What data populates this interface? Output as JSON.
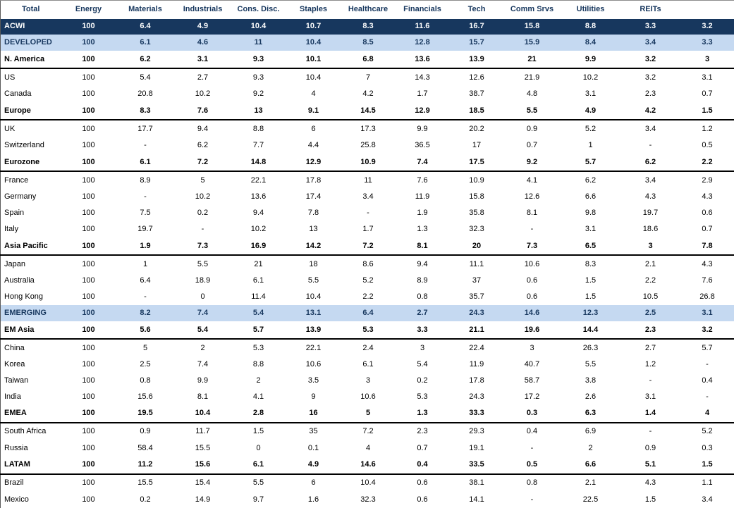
{
  "colors": {
    "header_text": "#17375E",
    "dark_band_bg": "#17375E",
    "dark_band_text": "#ffffff",
    "light_band_bg": "#C5D9F1",
    "light_band_text": "#17375E",
    "region_rule": "#000000"
  },
  "chart_data": {
    "type": "table",
    "column_headers": [
      "Total",
      "Energy",
      "Materials",
      "Industrials",
      "Cons. Disc.",
      "Staples",
      "Healthcare",
      "Financials",
      "Tech",
      "Comm Srvs",
      "Utilities",
      "REITs"
    ],
    "rows": [
      {
        "label": "ACWI",
        "emphasis": "dark",
        "values": [
          "100",
          "6.4",
          "4.9",
          "10.4",
          "10.7",
          "8.3",
          "11.6",
          "16.7",
          "15.8",
          "8.8",
          "3.3",
          "3.2"
        ]
      },
      {
        "label": "DEVELOPED",
        "emphasis": "light",
        "values": [
          "100",
          "6.1",
          "4.6",
          "11",
          "10.4",
          "8.5",
          "12.8",
          "15.7",
          "15.9",
          "8.4",
          "3.4",
          "3.3"
        ]
      },
      {
        "label": "N. America",
        "emphasis": "region",
        "values": [
          "100",
          "6.2",
          "3.1",
          "9.3",
          "10.1",
          "6.8",
          "13.6",
          "13.9",
          "21",
          "9.9",
          "3.2",
          "3"
        ]
      },
      {
        "label": "US",
        "emphasis": "normal",
        "values": [
          "100",
          "5.4",
          "2.7",
          "9.3",
          "10.4",
          "7",
          "14.3",
          "12.6",
          "21.9",
          "10.2",
          "3.2",
          "3.1"
        ]
      },
      {
        "label": "Canada",
        "emphasis": "normal",
        "values": [
          "100",
          "20.8",
          "10.2",
          "9.2",
          "4",
          "4.2",
          "1.7",
          "38.7",
          "4.8",
          "3.1",
          "2.3",
          "0.7"
        ]
      },
      {
        "label": "Europe",
        "emphasis": "region",
        "values": [
          "100",
          "8.3",
          "7.6",
          "13",
          "9.1",
          "14.5",
          "12.9",
          "18.5",
          "5.5",
          "4.9",
          "4.2",
          "1.5"
        ]
      },
      {
        "label": "UK",
        "emphasis": "normal",
        "values": [
          "100",
          "17.7",
          "9.4",
          "8.8",
          "6",
          "17.3",
          "9.9",
          "20.2",
          "0.9",
          "5.2",
          "3.4",
          "1.2"
        ]
      },
      {
        "label": "Switzerland",
        "emphasis": "normal",
        "values": [
          "100",
          "-",
          "6.2",
          "7.7",
          "4.4",
          "25.8",
          "36.5",
          "17",
          "0.7",
          "1",
          "-",
          "0.5"
        ]
      },
      {
        "label": "Eurozone",
        "emphasis": "region",
        "values": [
          "100",
          "6.1",
          "7.2",
          "14.8",
          "12.9",
          "10.9",
          "7.4",
          "17.5",
          "9.2",
          "5.7",
          "6.2",
          "2.2"
        ]
      },
      {
        "label": "France",
        "emphasis": "normal",
        "values": [
          "100",
          "8.9",
          "5",
          "22.1",
          "17.8",
          "11",
          "7.6",
          "10.9",
          "4.1",
          "6.2",
          "3.4",
          "2.9"
        ]
      },
      {
        "label": "Germany",
        "emphasis": "normal",
        "values": [
          "100",
          "-",
          "10.2",
          "13.6",
          "17.4",
          "3.4",
          "11.9",
          "15.8",
          "12.6",
          "6.6",
          "4.3",
          "4.3"
        ]
      },
      {
        "label": "Spain",
        "emphasis": "normal",
        "values": [
          "100",
          "7.5",
          "0.2",
          "9.4",
          "7.8",
          "-",
          "1.9",
          "35.8",
          "8.1",
          "9.8",
          "19.7",
          "0.6"
        ]
      },
      {
        "label": "Italy",
        "emphasis": "normal",
        "values": [
          "100",
          "19.7",
          "-",
          "10.2",
          "13",
          "1.7",
          "1.3",
          "32.3",
          "-",
          "3.1",
          "18.6",
          "0.7"
        ]
      },
      {
        "label": "Asia Pacific",
        "emphasis": "region",
        "values": [
          "100",
          "1.9",
          "7.3",
          "16.9",
          "14.2",
          "7.2",
          "8.1",
          "20",
          "7.3",
          "6.5",
          "3",
          "7.8"
        ]
      },
      {
        "label": "Japan",
        "emphasis": "normal",
        "values": [
          "100",
          "1",
          "5.5",
          "21",
          "18",
          "8.6",
          "9.4",
          "11.1",
          "10.6",
          "8.3",
          "2.1",
          "4.3"
        ]
      },
      {
        "label": "Australia",
        "emphasis": "normal",
        "values": [
          "100",
          "6.4",
          "18.9",
          "6.1",
          "5.5",
          "5.2",
          "8.9",
          "37",
          "0.6",
          "1.5",
          "2.2",
          "7.6"
        ]
      },
      {
        "label": "Hong Kong",
        "emphasis": "normal",
        "values": [
          "100",
          "-",
          "0",
          "11.4",
          "10.4",
          "2.2",
          "0.8",
          "35.7",
          "0.6",
          "1.5",
          "10.5",
          "26.8"
        ]
      },
      {
        "label": "EMERGING",
        "emphasis": "light",
        "values": [
          "100",
          "8.2",
          "7.4",
          "5.4",
          "13.1",
          "6.4",
          "2.7",
          "24.3",
          "14.6",
          "12.3",
          "2.5",
          "3.1"
        ]
      },
      {
        "label": "EM Asia",
        "emphasis": "region",
        "values": [
          "100",
          "5.6",
          "5.4",
          "5.7",
          "13.9",
          "5.3",
          "3.3",
          "21.1",
          "19.6",
          "14.4",
          "2.3",
          "3.2"
        ]
      },
      {
        "label": "China",
        "emphasis": "normal",
        "values": [
          "100",
          "5",
          "2",
          "5.3",
          "22.1",
          "2.4",
          "3",
          "22.4",
          "3",
          "26.3",
          "2.7",
          "5.7"
        ]
      },
      {
        "label": "Korea",
        "emphasis": "normal",
        "values": [
          "100",
          "2.5",
          "7.4",
          "8.8",
          "10.6",
          "6.1",
          "5.4",
          "11.9",
          "40.7",
          "5.5",
          "1.2",
          "-"
        ]
      },
      {
        "label": "Taiwan",
        "emphasis": "normal",
        "values": [
          "100",
          "0.8",
          "9.9",
          "2",
          "3.5",
          "3",
          "0.2",
          "17.8",
          "58.7",
          "3.8",
          "-",
          "0.4"
        ]
      },
      {
        "label": "India",
        "emphasis": "normal",
        "values": [
          "100",
          "15.6",
          "8.1",
          "4.1",
          "9",
          "10.6",
          "5.3",
          "24.3",
          "17.2",
          "2.6",
          "3.1",
          "-"
        ]
      },
      {
        "label": "EMEA",
        "emphasis": "region",
        "values": [
          "100",
          "19.5",
          "10.4",
          "2.8",
          "16",
          "5",
          "1.3",
          "33.3",
          "0.3",
          "6.3",
          "1.4",
          "4"
        ]
      },
      {
        "label": "South Africa",
        "emphasis": "normal",
        "values": [
          "100",
          "0.9",
          "11.7",
          "1.5",
          "35",
          "7.2",
          "2.3",
          "29.3",
          "0.4",
          "6.9",
          "-",
          "5.2"
        ]
      },
      {
        "label": "Russia",
        "emphasis": "normal",
        "values": [
          "100",
          "58.4",
          "15.5",
          "0",
          "0.1",
          "4",
          "0.7",
          "19.1",
          "-",
          "2",
          "0.9",
          "0.3"
        ]
      },
      {
        "label": "LATAM",
        "emphasis": "region",
        "values": [
          "100",
          "11.2",
          "15.6",
          "6.1",
          "4.9",
          "14.6",
          "0.4",
          "33.5",
          "0.5",
          "6.6",
          "5.1",
          "1.5"
        ]
      },
      {
        "label": "Brazil",
        "emphasis": "normal",
        "values": [
          "100",
          "15.5",
          "15.4",
          "5.5",
          "6",
          "10.4",
          "0.6",
          "38.1",
          "0.8",
          "2.1",
          "4.3",
          "1.1"
        ]
      },
      {
        "label": "Mexico",
        "emphasis": "normal",
        "values": [
          "100",
          "0.2",
          "14.9",
          "9.7",
          "1.6",
          "32.3",
          "0.6",
          "14.1",
          "-",
          "22.5",
          "1.5",
          "3.4"
        ]
      }
    ]
  }
}
